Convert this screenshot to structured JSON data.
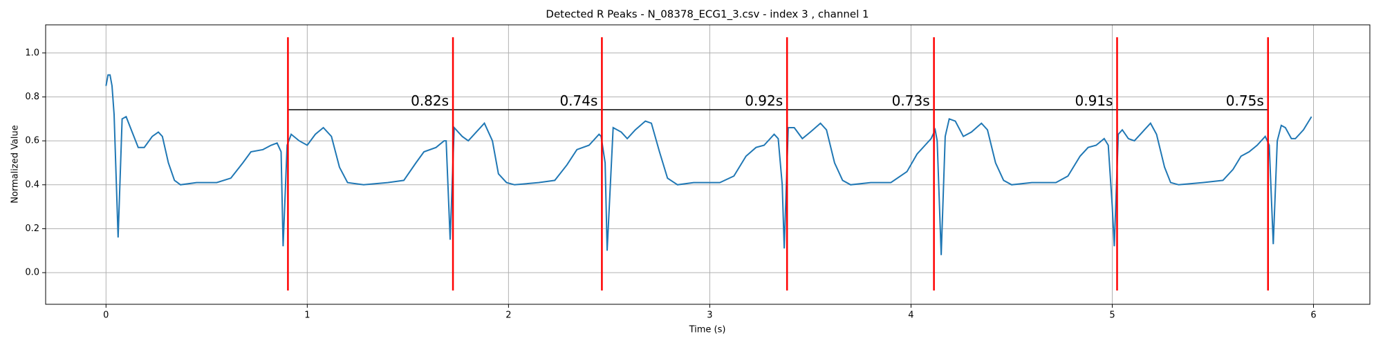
{
  "chart_data": {
    "type": "line",
    "title": "Detected R Peaks - N_08378_ECG1_3.csv - index 3 , channel 1",
    "xlabel": "Time (s)",
    "ylabel": "Normalized Value",
    "color": "#1f77b4",
    "x": [
      0,
      0.01,
      0.02,
      0.03,
      0.04,
      0.06,
      0.08,
      0.1,
      0.13,
      0.16,
      0.19,
      0.23,
      0.26,
      0.28,
      0.31,
      0.34,
      0.37,
      0.45,
      0.55,
      0.62,
      0.68,
      0.72,
      0.78,
      0.82,
      0.85,
      0.87,
      0.88,
      0.9,
      0.92,
      0.96,
      1.0,
      1.04,
      1.08,
      1.12,
      1.16,
      1.2,
      1.28,
      1.4,
      1.48,
      1.54,
      1.58,
      1.64,
      1.68,
      1.69,
      1.71,
      1.73,
      1.77,
      1.8,
      1.85,
      1.88,
      1.92,
      1.95,
      1.99,
      2.03,
      2.15,
      2.23,
      2.29,
      2.34,
      2.4,
      2.45,
      2.46,
      2.48,
      2.49,
      2.52,
      2.56,
      2.59,
      2.63,
      2.68,
      2.71,
      2.75,
      2.79,
      2.84,
      2.92,
      3.05,
      3.12,
      3.18,
      3.23,
      3.27,
      3.32,
      3.34,
      3.36,
      3.37,
      3.39,
      3.42,
      3.46,
      3.5,
      3.55,
      3.58,
      3.62,
      3.66,
      3.7,
      3.8,
      3.9,
      3.98,
      4.03,
      4.07,
      4.1,
      4.12,
      4.13,
      4.15,
      4.17,
      4.19,
      4.22,
      4.26,
      4.3,
      4.35,
      4.38,
      4.42,
      4.46,
      4.5,
      4.6,
      4.72,
      4.78,
      4.84,
      4.88,
      4.92,
      4.96,
      4.98,
      5.0,
      5.01,
      5.03,
      5.05,
      5.08,
      5.11,
      5.16,
      5.19,
      5.22,
      5.26,
      5.29,
      5.33,
      5.45,
      5.55,
      5.6,
      5.64,
      5.68,
      5.72,
      5.76,
      5.78,
      5.8,
      5.82,
      5.84,
      5.86,
      5.89,
      5.91,
      5.95,
      5.99
    ],
    "values": [
      0.85,
      0.9,
      0.9,
      0.85,
      0.72,
      0.16,
      0.7,
      0.71,
      0.64,
      0.57,
      0.57,
      0.62,
      0.64,
      0.62,
      0.5,
      0.42,
      0.4,
      0.41,
      0.41,
      0.43,
      0.5,
      0.55,
      0.56,
      0.58,
      0.59,
      0.55,
      0.12,
      0.58,
      0.63,
      0.6,
      0.58,
      0.63,
      0.66,
      0.62,
      0.48,
      0.41,
      0.4,
      0.41,
      0.42,
      0.5,
      0.55,
      0.57,
      0.6,
      0.6,
      0.15,
      0.66,
      0.62,
      0.6,
      0.65,
      0.68,
      0.6,
      0.45,
      0.41,
      0.4,
      0.41,
      0.42,
      0.49,
      0.56,
      0.58,
      0.63,
      0.62,
      0.5,
      0.1,
      0.66,
      0.64,
      0.61,
      0.65,
      0.69,
      0.68,
      0.55,
      0.43,
      0.4,
      0.41,
      0.41,
      0.44,
      0.53,
      0.57,
      0.58,
      0.63,
      0.61,
      0.4,
      0.11,
      0.66,
      0.66,
      0.61,
      0.64,
      0.68,
      0.65,
      0.5,
      0.42,
      0.4,
      0.41,
      0.41,
      0.46,
      0.54,
      0.58,
      0.61,
      0.65,
      0.6,
      0.08,
      0.62,
      0.7,
      0.69,
      0.62,
      0.64,
      0.68,
      0.65,
      0.5,
      0.42,
      0.4,
      0.41,
      0.41,
      0.44,
      0.53,
      0.57,
      0.58,
      0.61,
      0.58,
      0.3,
      0.12,
      0.63,
      0.65,
      0.61,
      0.6,
      0.65,
      0.68,
      0.63,
      0.48,
      0.41,
      0.4,
      0.41,
      0.42,
      0.47,
      0.53,
      0.55,
      0.58,
      0.62,
      0.58,
      0.13,
      0.6,
      0.67,
      0.66,
      0.61,
      0.61,
      0.65,
      0.71
    ],
    "peaks": {
      "x": [
        0.904,
        1.724,
        2.464,
        3.384,
        4.114,
        5.024,
        5.774
      ],
      "color": "red"
    },
    "intervals": {
      "values": [
        0.82,
        0.74,
        0.92,
        0.73,
        0.91,
        0.75
      ],
      "value_labels": [
        "0.82s",
        "0.74s",
        "0.92s",
        "0.73s",
        "0.91s",
        "0.75s"
      ]
    },
    "xlim": [
      -0.3,
      6.28
    ],
    "ylim": [
      -0.144,
      1.128
    ],
    "xticks": [
      0,
      1,
      2,
      3,
      4,
      5,
      6
    ],
    "yticks": [
      {
        "value": 0,
        "label": "0.0"
      },
      0.2,
      0.4,
      0.6,
      0.8,
      {
        "value": 1,
        "label": "1.0"
      }
    ],
    "grid": true
  }
}
